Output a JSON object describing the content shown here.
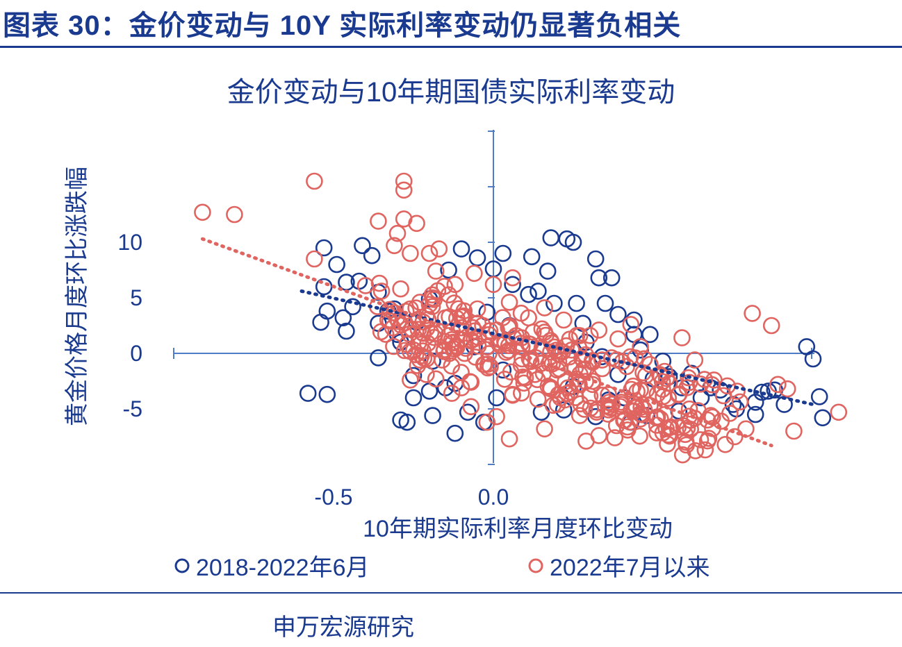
{
  "header": {
    "title": "图表 30：金价变动与 10Y 实际利率变动仍显著负相关"
  },
  "source": "申万宏源研究",
  "colors": {
    "navy": "#1a3a8f",
    "salmon": "#e0645f"
  },
  "chart_data": {
    "type": "scatter",
    "title": "金价变动与10年期国债实际利率变动",
    "xlabel": "10年期实际利率月度环比变动",
    "ylabel": "黄金价格月度环比涨跌幅",
    "xlim": [
      -1.0,
      1.0
    ],
    "ylim": [
      -10,
      20
    ],
    "x_ticks": [
      {
        "value": -0.5,
        "label": "-0.5"
      },
      {
        "value": 0.0,
        "label": "0.0"
      }
    ],
    "y_ticks": [
      {
        "value": 10,
        "label": "10"
      },
      {
        "value": 5,
        "label": "5"
      },
      {
        "value": 0,
        "label": "0"
      },
      {
        "value": -5,
        "label": "-5"
      }
    ],
    "grid": false,
    "legend_position": "bottom",
    "series": [
      {
        "name": "2018-2022年6月",
        "color": "#1a3a8f",
        "marker": "open-circle",
        "trendline": {
          "from": [
            -0.6,
            5.6
          ],
          "to": [
            1.0,
            -4.6
          ]
        },
        "points": [
          [
            -0.53,
            9.5
          ],
          [
            -0.49,
            8.0
          ],
          [
            -0.53,
            6.0
          ],
          [
            -0.52,
            3.8
          ],
          [
            -0.54,
            2.8
          ],
          [
            -0.47,
            3.2
          ],
          [
            -0.46,
            2.0
          ],
          [
            -0.44,
            4.2
          ],
          [
            -0.46,
            6.4
          ],
          [
            -0.42,
            6.5
          ],
          [
            -0.41,
            9.7
          ],
          [
            -0.36,
            5.5
          ],
          [
            -0.38,
            8.8
          ],
          [
            -0.36,
            2.7
          ],
          [
            -0.33,
            3.8
          ],
          [
            -0.3,
            1.7
          ],
          [
            -0.31,
            4.0
          ],
          [
            -0.36,
            -0.4
          ],
          [
            -0.25,
            -4.0
          ],
          [
            -0.2,
            -3.4
          ],
          [
            -0.25,
            -2.0
          ],
          [
            -0.15,
            -3.1
          ],
          [
            -0.12,
            -2.7
          ],
          [
            -0.29,
            1.0
          ],
          [
            -0.24,
            2.8
          ],
          [
            -0.2,
            4.9
          ],
          [
            -0.14,
            7.5
          ],
          [
            -0.1,
            9.4
          ],
          [
            -0.05,
            8.6
          ],
          [
            0.03,
            9.0
          ],
          [
            0.0,
            7.6
          ],
          [
            0.06,
            6.2
          ],
          [
            -0.58,
            -3.6
          ],
          [
            -0.52,
            -3.7
          ],
          [
            -0.29,
            -6.0
          ],
          [
            -0.27,
            -6.2
          ],
          [
            -0.19,
            -5.6
          ],
          [
            -0.12,
            -7.2
          ],
          [
            -0.03,
            -6.2
          ],
          [
            -0.08,
            -5.3
          ],
          [
            0.01,
            -4.0
          ],
          [
            0.12,
            8.7
          ],
          [
            0.18,
            10.4
          ],
          [
            0.23,
            10.3
          ],
          [
            0.25,
            10.0
          ],
          [
            0.17,
            7.4
          ],
          [
            0.11,
            5.3
          ],
          [
            0.14,
            5.6
          ],
          [
            0.19,
            4.5
          ],
          [
            0.26,
            4.5
          ],
          [
            0.32,
            8.5
          ],
          [
            0.33,
            6.8
          ],
          [
            0.37,
            6.8
          ],
          [
            0.35,
            4.5
          ],
          [
            0.39,
            3.5
          ],
          [
            0.44,
            3.0
          ],
          [
            0.49,
            1.7
          ],
          [
            0.46,
            0.3
          ],
          [
            0.53,
            -0.7
          ],
          [
            0.55,
            -2.1
          ],
          [
            0.59,
            -3.1
          ],
          [
            0.65,
            -4.0
          ],
          [
            0.68,
            -3.1
          ],
          [
            0.71,
            -3.3
          ],
          [
            0.75,
            -4.6
          ],
          [
            0.82,
            -4.4
          ],
          [
            0.84,
            -3.5
          ],
          [
            0.86,
            -3.4
          ],
          [
            0.88,
            -3.3
          ],
          [
            0.91,
            -4.6
          ],
          [
            0.98,
            0.6
          ],
          [
            1.0,
            -0.5
          ],
          [
            1.02,
            -3.9
          ],
          [
            1.03,
            -5.8
          ],
          [
            0.82,
            -5.5
          ],
          [
            0.76,
            -5.0
          ],
          [
            0.48,
            -5.6
          ],
          [
            0.43,
            -6.2
          ],
          [
            0.32,
            -5.7
          ],
          [
            0.22,
            -5.1
          ],
          [
            0.15,
            -5.3
          ],
          [
            0.29,
            1.0
          ],
          [
            0.34,
            -0.3
          ],
          [
            0.39,
            -1.9
          ],
          [
            0.5,
            -2.3
          ],
          [
            0.62,
            -1.8
          ],
          [
            0.44,
            1.7
          ],
          [
            0.41,
            -4.0
          ],
          [
            0.03,
            -1.5
          ],
          [
            -0.06,
            0.6
          ],
          [
            0.05,
            2.5
          ],
          [
            -0.02,
            3.7
          ],
          [
            -0.19,
            -0.7
          ],
          [
            0.28,
            2.7
          ],
          [
            0.25,
            -3.0
          ],
          [
            0.36,
            -4.2
          ],
          [
            0.58,
            -5.2
          ]
        ]
      },
      {
        "name": "2022年7月以来",
        "color": "#e0645f",
        "marker": "open-circle",
        "trendline": {
          "from": [
            -0.91,
            10.3
          ],
          "to": [
            0.87,
            -8.3
          ]
        },
        "points": [
          [
            -0.91,
            12.7
          ],
          [
            -0.81,
            12.5
          ],
          [
            -0.56,
            15.5
          ],
          [
            -0.28,
            15.5
          ],
          [
            -0.28,
            14.7
          ],
          [
            -0.28,
            12.1
          ],
          [
            -0.24,
            11.7
          ],
          [
            -0.3,
            10.8
          ],
          [
            -0.31,
            9.7
          ],
          [
            -0.26,
            9.0
          ],
          [
            -0.2,
            9.0
          ],
          [
            -0.17,
            9.4
          ],
          [
            -0.36,
            11.9
          ],
          [
            -0.56,
            8.5
          ],
          [
            -0.4,
            6.1
          ],
          [
            -0.35,
            5.6
          ],
          [
            -0.29,
            5.8
          ],
          [
            -0.26,
            4.0
          ],
          [
            -0.21,
            3.4
          ],
          [
            -0.15,
            3.2
          ],
          [
            -0.1,
            2.3
          ],
          [
            -0.06,
            1.3
          ],
          [
            -0.02,
            0.6
          ],
          [
            0.04,
            0.1
          ],
          [
            0.09,
            -0.5
          ],
          [
            0.15,
            -0.9
          ],
          [
            0.2,
            -1.5
          ],
          [
            0.26,
            -2.3
          ],
          [
            0.31,
            -2.8
          ],
          [
            0.36,
            -3.7
          ],
          [
            0.4,
            -4.4
          ],
          [
            0.44,
            -5.2
          ],
          [
            0.51,
            -5.8
          ],
          [
            0.55,
            -6.7
          ],
          [
            0.6,
            -7.3
          ],
          [
            0.68,
            -5.6
          ],
          [
            0.74,
            -5.4
          ],
          [
            0.79,
            -6.8
          ],
          [
            0.61,
            -2.2
          ],
          [
            0.49,
            -1.0
          ],
          [
            0.46,
            0.6
          ],
          [
            0.43,
            2.6
          ],
          [
            0.39,
            1.3
          ],
          [
            0.37,
            -0.4
          ],
          [
            0.33,
            2.1
          ],
          [
            0.27,
            1.6
          ],
          [
            0.22,
            3.0
          ],
          [
            0.16,
            4.1
          ],
          [
            0.11,
            3.2
          ],
          [
            0.05,
            4.6
          ],
          [
            0.0,
            6.2
          ],
          [
            -0.06,
            7.2
          ],
          [
            -0.12,
            6.2
          ],
          [
            -0.18,
            7.4
          ],
          [
            -0.23,
            4.6
          ],
          [
            -0.27,
            2.2
          ],
          [
            -0.23,
            -0.6
          ],
          [
            -0.18,
            -2.3
          ],
          [
            -0.13,
            -3.6
          ],
          [
            -0.07,
            -4.8
          ],
          [
            -0.02,
            -6.2
          ],
          [
            0.05,
            -7.7
          ],
          [
            0.16,
            -6.8
          ],
          [
            0.27,
            -5.6
          ],
          [
            0.33,
            -7.4
          ],
          [
            0.38,
            -7.6
          ],
          [
            0.42,
            -6.9
          ],
          [
            0.29,
            -7.9
          ],
          [
            0.59,
            1.4
          ],
          [
            0.63,
            -0.6
          ],
          [
            0.69,
            -2.4
          ],
          [
            0.55,
            -2.7
          ],
          [
            0.81,
            3.6
          ],
          [
            0.87,
            2.5
          ],
          [
            0.89,
            -2.8
          ],
          [
            0.92,
            -3.2
          ],
          [
            1.08,
            -5.3
          ],
          [
            0.94,
            -7.0
          ],
          [
            0.67,
            -6.0
          ],
          [
            0.49,
            -4.7
          ],
          [
            0.4,
            -4.6
          ],
          [
            0.18,
            -3.2
          ],
          [
            0.1,
            -2.2
          ],
          [
            -0.03,
            -1.0
          ],
          [
            -0.09,
            0.0
          ],
          [
            -0.16,
            -0.6
          ],
          [
            -0.21,
            -1.9
          ],
          [
            -0.26,
            -2.4
          ],
          [
            0.06,
            -3.7
          ],
          [
            0.13,
            -1.9
          ],
          [
            0.21,
            0.2
          ],
          [
            0.29,
            -1.4
          ],
          [
            0.01,
            2.1
          ],
          [
            -0.14,
            1.6
          ],
          [
            -0.1,
            -3.1
          ],
          [
            0.2,
            -4.6
          ],
          [
            0.06,
            6.8
          ],
          [
            -0.05,
            4.0
          ],
          [
            0.16,
            1.9
          ],
          [
            0.34,
            -0.6
          ],
          [
            0.52,
            -1.9
          ],
          [
            0.46,
            -3.3
          ],
          [
            -0.19,
            5.0
          ],
          [
            -0.33,
            3.0
          ],
          [
            0.01,
            -5.7
          ],
          [
            -0.07,
            -2.6
          ]
        ]
      }
    ]
  }
}
